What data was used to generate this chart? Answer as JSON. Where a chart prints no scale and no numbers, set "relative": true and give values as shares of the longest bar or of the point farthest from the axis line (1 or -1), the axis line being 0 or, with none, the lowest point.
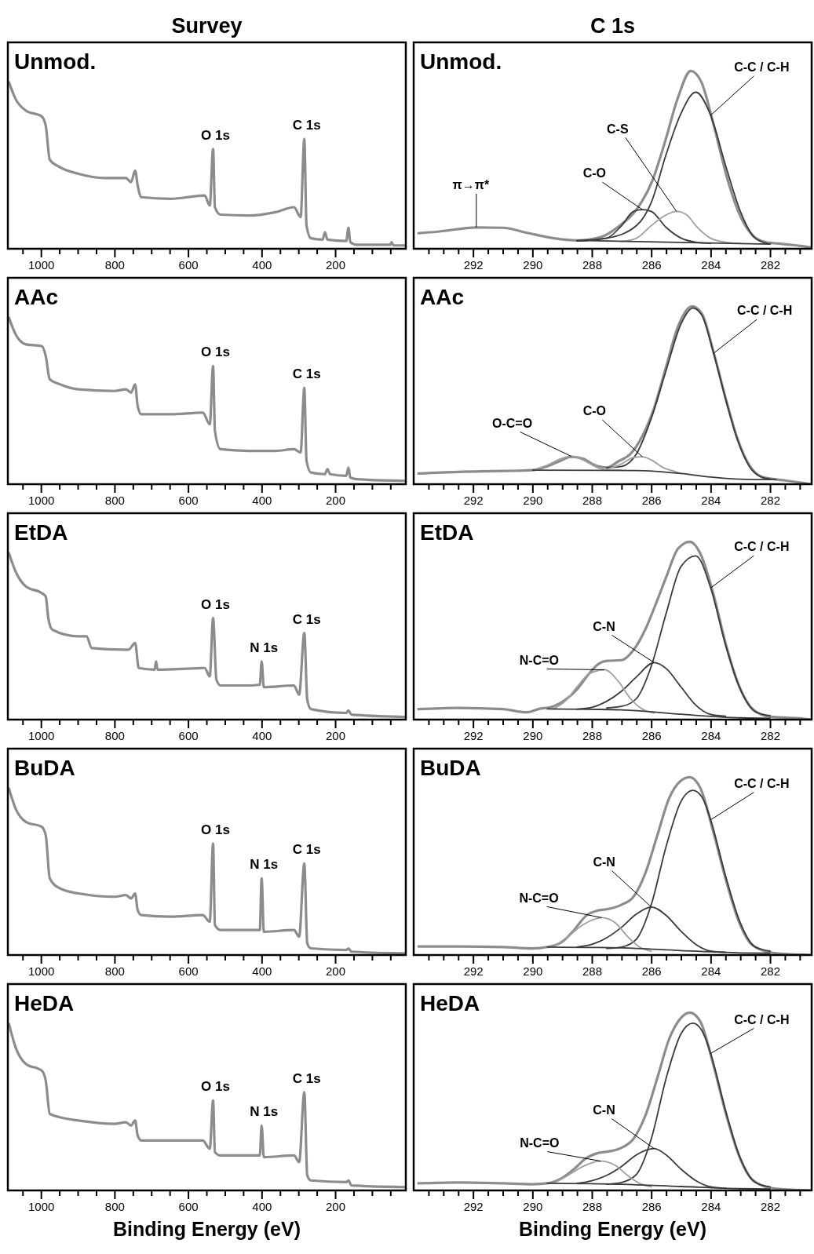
{
  "chart_data": [
    {
      "type": "line",
      "title": "Survey",
      "subtitle": "Unmod.",
      "relative": true,
      "xlim": [
        1090,
        8
      ],
      "xticks": [
        {
          "value": 1050,
          "label": null
        },
        1000,
        {
          "value": 950,
          "label": null
        },
        {
          "value": 900,
          "label": null
        },
        {
          "value": 850,
          "label": null
        },
        800,
        {
          "value": 750,
          "label": null
        },
        {
          "value": 700,
          "label": null
        },
        {
          "value": 650,
          "label": null
        },
        600,
        {
          "value": 550,
          "label": null
        },
        {
          "value": 500,
          "label": null
        },
        {
          "value": 450,
          "label": null
        },
        400,
        {
          "value": 350,
          "label": null
        },
        {
          "value": 300,
          "label": null
        },
        {
          "value": 250,
          "label": null
        },
        200,
        {
          "value": 150,
          "label": null
        },
        {
          "value": 100,
          "label": null
        },
        {
          "value": 50,
          "label": null
        }
      ],
      "annotations": [
        {
          "text": "O 1s",
          "x": 532,
          "y": 0.6
        },
        {
          "text": "C 1s",
          "x": 284,
          "y": 0.66
        }
      ],
      "series": [
        {
          "color": "#8c8c8c",
          "x": [
            1087,
            1069,
            1041,
            998,
            987,
            976,
            948,
            898,
            826,
            769,
            755,
            744,
            737,
            727,
            648,
            555,
            541,
            532,
            527,
            512,
            434,
            362,
            312,
            294,
            284,
            278,
            266,
            234,
            228,
            221,
            170,
            164,
            159,
            141,
            50,
            47,
            41,
            9
          ],
          "values": [
            1.0,
            0.9,
            0.83,
            0.795,
            0.74,
            0.535,
            0.49,
            0.45,
            0.425,
            0.425,
            0.4,
            0.47,
            0.38,
            0.31,
            0.3,
            0.32,
            0.26,
            0.6,
            0.25,
            0.205,
            0.2,
            0.22,
            0.25,
            0.19,
            0.66,
            0.14,
            0.063,
            0.055,
            0.1,
            0.055,
            0.047,
            0.126,
            0.04,
            0.024,
            0.024,
            0.04,
            0.02,
            0.02
          ]
        }
      ]
    },
    {
      "type": "line",
      "title": "C 1s",
      "subtitle": "Unmod.",
      "relative": true,
      "xlim": [
        294,
        280.6
      ],
      "xticks": [
        {
          "value": 293.5,
          "label": null
        },
        {
          "value": 293,
          "label": null
        },
        {
          "value": 292.5,
          "label": null
        },
        292,
        {
          "value": 291.5,
          "label": null
        },
        {
          "value": 291,
          "label": null
        },
        {
          "value": 290.5,
          "label": null
        },
        290,
        {
          "value": 289.5,
          "label": null
        },
        {
          "value": 289,
          "label": null
        },
        {
          "value": 288.5,
          "label": null
        },
        288,
        {
          "value": 287.5,
          "label": null
        },
        {
          "value": 287,
          "label": null
        },
        {
          "value": 286.5,
          "label": null
        },
        286,
        {
          "value": 285.5,
          "label": null
        },
        {
          "value": 285,
          "label": null
        },
        {
          "value": 284.5,
          "label": null
        },
        284,
        {
          "value": 283.5,
          "label": null
        },
        {
          "value": 283,
          "label": null
        },
        {
          "value": 282.5,
          "label": null
        },
        282,
        {
          "value": 281.5,
          "label": null
        },
        {
          "value": 281,
          "label": null
        }
      ],
      "annotations": [
        {
          "text": "π→π*",
          "x": 291.89,
          "y": 0.12
        },
        {
          "text": "C-O",
          "x": 286.3,
          "y": 0.22
        },
        {
          "text": "C-S",
          "x": 285.15,
          "y": 0.21
        },
        {
          "text": "C-C / C-H",
          "x": 284,
          "y": 0.75
        }
      ],
      "series": [
        {
          "color": "#8c8c8c",
          "x": [
            293.84,
            293.19,
            291.89,
            291.0,
            290.15,
            289.28,
            288.5,
            287.7,
            287.1,
            286.5,
            285.97,
            285.54,
            285.1,
            284.67,
            284.32,
            283.89,
            283.45,
            283.02,
            282.58,
            282.15,
            281.71,
            281.28,
            280.63
          ],
          "values": [
            0.088,
            0.096,
            0.12,
            0.118,
            0.088,
            0.059,
            0.047,
            0.066,
            0.125,
            0.22,
            0.38,
            0.6,
            0.85,
            1.0,
            0.94,
            0.69,
            0.4,
            0.19,
            0.074,
            0.037,
            0.029,
            0.022,
            0.007
          ]
        },
        {
          "color": "#3a3a3a",
          "x": [
            288.5,
            287.5,
            286.5,
            286,
            285.5,
            285,
            284.5,
            284,
            283.5,
            283,
            282.5,
            282
          ],
          "values": [
            0.044,
            0.059,
            0.13,
            0.26,
            0.53,
            0.76,
            0.88,
            0.75,
            0.47,
            0.21,
            0.059,
            0.026
          ]
        },
        {
          "color": "#3a3a3a",
          "x": [
            288.5,
            287.5,
            287,
            286.6,
            286.3,
            286,
            285.5,
            285,
            284.5,
            284
          ],
          "values": [
            0.044,
            0.06,
            0.13,
            0.21,
            0.22,
            0.21,
            0.12,
            0.06,
            0.037,
            0.03
          ]
        },
        {
          "color": "#a0a0a0",
          "x": [
            287,
            286.5,
            286,
            285.5,
            285.15,
            284.8,
            284.5,
            284,
            283.5,
            283
          ],
          "values": [
            0.04,
            0.059,
            0.13,
            0.19,
            0.21,
            0.19,
            0.13,
            0.059,
            0.037,
            0.03
          ]
        },
        {
          "color": "#3a3a3a",
          "x": [
            288.5,
            282
          ],
          "values": [
            0.047,
            0.026
          ]
        }
      ]
    },
    {
      "type": "line",
      "subtitle": "AAc",
      "relative": true,
      "xlim": [
        1090,
        8
      ],
      "xticks": [
        {
          "value": 1050,
          "label": null
        },
        1000,
        {
          "value": 950,
          "label": null
        },
        {
          "value": 900,
          "label": null
        },
        {
          "value": 850,
          "label": null
        },
        800,
        {
          "value": 750,
          "label": null
        },
        {
          "value": 700,
          "label": null
        },
        {
          "value": 650,
          "label": null
        },
        600,
        {
          "value": 550,
          "label": null
        },
        {
          "value": 500,
          "label": null
        },
        {
          "value": 450,
          "label": null
        },
        400,
        {
          "value": 350,
          "label": null
        },
        {
          "value": 300,
          "label": null
        },
        {
          "value": 250,
          "label": null
        },
        200,
        {
          "value": 150,
          "label": null
        },
        {
          "value": 100,
          "label": null
        },
        {
          "value": 50,
          "label": null
        }
      ],
      "annotations": [
        {
          "text": "O 1s",
          "x": 532,
          "y": 0.71
        },
        {
          "text": "C 1s",
          "x": 284,
          "y": 0.58
        }
      ],
      "series": [
        {
          "color": "#8c8c8c",
          "x": [
            1087,
            1069,
            1041,
            998,
            987,
            976,
            948,
            898,
            800,
            769,
            755,
            744,
            737,
            727,
            648,
            560,
            541,
            532,
            527,
            512,
            434,
            362,
            312,
            294,
            284,
            278,
            266,
            228,
            221,
            214,
            170,
            164,
            159,
            141,
            9
          ],
          "values": [
            1.0,
            0.9,
            0.84,
            0.83,
            0.77,
            0.63,
            0.6,
            0.57,
            0.56,
            0.57,
            0.55,
            0.6,
            0.47,
            0.42,
            0.42,
            0.43,
            0.36,
            0.71,
            0.32,
            0.21,
            0.2,
            0.2,
            0.21,
            0.19,
            0.58,
            0.14,
            0.07,
            0.06,
            0.09,
            0.06,
            0.05,
            0.1,
            0.04,
            0.03,
            0.02
          ]
        }
      ]
    },
    {
      "type": "line",
      "subtitle": "AAc",
      "relative": true,
      "xlim": [
        294,
        280.6
      ],
      "xticks": [
        {
          "value": 293.5,
          "label": null
        },
        {
          "value": 293,
          "label": null
        },
        {
          "value": 292.5,
          "label": null
        },
        292,
        {
          "value": 291.5,
          "label": null
        },
        {
          "value": 291,
          "label": null
        },
        {
          "value": 290.5,
          "label": null
        },
        290,
        {
          "value": 289.5,
          "label": null
        },
        {
          "value": 289,
          "label": null
        },
        {
          "value": 288.5,
          "label": null
        },
        288,
        {
          "value": 287.5,
          "label": null
        },
        {
          "value": 287,
          "label": null
        },
        {
          "value": 286.5,
          "label": null
        },
        286,
        {
          "value": 285.5,
          "label": null
        },
        {
          "value": 285,
          "label": null
        },
        {
          "value": 284.5,
          "label": null
        },
        284,
        {
          "value": 283.5,
          "label": null
        },
        {
          "value": 283,
          "label": null
        },
        {
          "value": 282.5,
          "label": null
        },
        282,
        {
          "value": 281.5,
          "label": null
        },
        {
          "value": 281,
          "label": null
        }
      ],
      "annotations": [
        {
          "text": "O-C=O",
          "x": 288.7,
          "y": 0.157
        },
        {
          "text": "C-O",
          "x": 286.3,
          "y": 0.154
        },
        {
          "text": "C-C / C-H",
          "x": 283.9,
          "y": 0.736
        }
      ],
      "series": [
        {
          "color": "#8c8c8c",
          "x": [
            293.84,
            292.5,
            291,
            290,
            289.5,
            289,
            288.7,
            288.3,
            287.9,
            287.5,
            287.1,
            286.7,
            286.3,
            285.9,
            285.5,
            285.1,
            284.63,
            284.3,
            283.9,
            283.5,
            283.1,
            282.7,
            282.3,
            281.9,
            281.5,
            280.63
          ],
          "values": [
            0.06,
            0.069,
            0.074,
            0.079,
            0.1,
            0.136,
            0.154,
            0.143,
            0.107,
            0.093,
            0.129,
            0.17,
            0.27,
            0.43,
            0.66,
            0.886,
            1.0,
            0.96,
            0.74,
            0.486,
            0.257,
            0.107,
            0.043,
            0.029,
            0.021,
            0.0
          ]
        },
        {
          "color": "#3a3a3a",
          "x": [
            287.5,
            287,
            286.5,
            286,
            285.5,
            285,
            284.6,
            284.3,
            283.9,
            283.5,
            283.1,
            282.7,
            282.3,
            282
          ],
          "values": [
            0.093,
            0.1,
            0.17,
            0.37,
            0.64,
            0.9,
            0.99,
            0.95,
            0.736,
            0.48,
            0.25,
            0.1,
            0.04,
            0.029
          ]
        },
        {
          "color": "#a0a0a0",
          "x": [
            290,
            289.5,
            289,
            288.7,
            288.3,
            287.9,
            287.5,
            287
          ],
          "values": [
            0.079,
            0.107,
            0.146,
            0.157,
            0.136,
            0.1,
            0.079,
            0.079
          ]
        },
        {
          "color": "#a0a0a0",
          "x": [
            287.5,
            287,
            286.6,
            286.3,
            286,
            285.6,
            285.2,
            285
          ],
          "values": [
            0.083,
            0.114,
            0.15,
            0.154,
            0.136,
            0.093,
            0.071,
            0.06
          ]
        },
        {
          "color": "#3a3a3a",
          "x": [
            290,
            286.5,
            285,
            284,
            282.5,
            281.8
          ],
          "values": [
            0.079,
            0.077,
            0.06,
            0.04,
            0.026,
            0.026
          ]
        }
      ]
    },
    {
      "type": "line",
      "subtitle": "EtDA",
      "relative": true,
      "xlim": [
        1090,
        8
      ],
      "xticks": [
        {
          "value": 1050,
          "label": null
        },
        1000,
        {
          "value": 950,
          "label": null
        },
        {
          "value": 900,
          "label": null
        },
        {
          "value": 850,
          "label": null
        },
        800,
        {
          "value": 750,
          "label": null
        },
        {
          "value": 700,
          "label": null
        },
        {
          "value": 650,
          "label": null
        },
        600,
        {
          "value": 550,
          "label": null
        },
        {
          "value": 500,
          "label": null
        },
        {
          "value": 450,
          "label": null
        },
        400,
        {
          "value": 350,
          "label": null
        },
        {
          "value": 300,
          "label": null
        },
        {
          "value": 250,
          "label": null
        },
        200,
        {
          "value": 150,
          "label": null
        },
        {
          "value": 100,
          "label": null
        },
        {
          "value": 50,
          "label": null
        }
      ],
      "annotations": [
        {
          "text": "O 1s",
          "x": 532,
          "y": 0.61
        },
        {
          "text": "N 1s",
          "x": 400,
          "y": 0.35
        },
        {
          "text": "C 1s",
          "x": 284,
          "y": 0.52
        }
      ],
      "series": [
        {
          "color": "#8c8c8c",
          "x": [
            1087,
            1069,
            1041,
            998,
            987,
            980,
            969,
            898,
            876,
            862,
            776,
            762,
            744,
            734,
            691,
            687,
            683,
            555,
            541,
            532,
            523,
            512,
            434,
            405,
            400,
            394,
            312,
            298,
            284,
            276,
            266,
            170,
            164,
            156,
            9
          ],
          "values": [
            1.0,
            0.89,
            0.8,
            0.76,
            0.74,
            0.61,
            0.54,
            0.5,
            0.5,
            0.43,
            0.42,
            0.42,
            0.46,
            0.31,
            0.3,
            0.35,
            0.3,
            0.31,
            0.26,
            0.61,
            0.24,
            0.205,
            0.205,
            0.21,
            0.35,
            0.195,
            0.205,
            0.15,
            0.52,
            0.12,
            0.063,
            0.04,
            0.055,
            0.03,
            0.016
          ]
        }
      ]
    },
    {
      "type": "line",
      "subtitle": "EtDA",
      "relative": true,
      "xlim": [
        294,
        280.6
      ],
      "xticks": [
        {
          "value": 293.5,
          "label": null
        },
        {
          "value": 293,
          "label": null
        },
        {
          "value": 292.5,
          "label": null
        },
        292,
        {
          "value": 291.5,
          "label": null
        },
        {
          "value": 291,
          "label": null
        },
        {
          "value": 290.5,
          "label": null
        },
        290,
        {
          "value": 289.5,
          "label": null
        },
        {
          "value": 289,
          "label": null
        },
        {
          "value": 288.5,
          "label": null
        },
        288,
        {
          "value": 287.5,
          "label": null
        },
        {
          "value": 287,
          "label": null
        },
        {
          "value": 286.5,
          "label": null
        },
        286,
        {
          "value": 285.5,
          "label": null
        },
        {
          "value": 285,
          "label": null
        },
        {
          "value": 284.5,
          "label": null
        },
        284,
        {
          "value": 283.5,
          "label": null
        },
        {
          "value": 283,
          "label": null
        },
        {
          "value": 282.5,
          "label": null
        },
        282,
        {
          "value": 281.5,
          "label": null
        },
        {
          "value": 281,
          "label": null
        }
      ],
      "annotations": [
        {
          "text": "N-C=O",
          "x": 287.58,
          "y": 0.28
        },
        {
          "text": "C-N",
          "x": 285.9,
          "y": 0.32
        },
        {
          "text": "C-C / C-H",
          "x": 284,
          "y": 0.74
        }
      ],
      "series": [
        {
          "color": "#8c8c8c",
          "x": [
            293.84,
            292.5,
            291,
            290.2,
            289.8,
            289.3,
            288.9,
            288.5,
            288.1,
            287.8,
            287.5,
            287.0,
            286.6,
            286.2,
            285.8,
            285.5,
            285.1,
            284.7,
            284.35,
            283.9,
            283.5,
            283.1,
            282.7,
            282.3,
            281.9,
            281.0,
            280.63
          ],
          "values": [
            0.059,
            0.066,
            0.059,
            0.041,
            0.059,
            0.074,
            0.11,
            0.17,
            0.257,
            0.31,
            0.33,
            0.334,
            0.39,
            0.507,
            0.67,
            0.8,
            0.96,
            1.0,
            0.934,
            0.7,
            0.43,
            0.213,
            0.081,
            0.029,
            0.015,
            0.007,
            0.0
          ]
        },
        {
          "color": "#3a3a3a",
          "x": [
            287.5,
            287,
            286.5,
            286,
            285.5,
            285,
            284.5,
            284,
            283.5,
            283,
            282.5,
            282
          ],
          "values": [
            0.066,
            0.074,
            0.118,
            0.3,
            0.596,
            0.86,
            0.92,
            0.74,
            0.42,
            0.17,
            0.044,
            0.022
          ]
        },
        {
          "color": "#3a3a3a",
          "x": [
            288.5,
            288,
            287.5,
            287,
            286.5,
            285.9,
            285.5,
            285,
            284.5,
            284,
            283.5
          ],
          "values": [
            0.059,
            0.069,
            0.103,
            0.16,
            0.24,
            0.32,
            0.287,
            0.184,
            0.081,
            0.029,
            0.019
          ]
        },
        {
          "color": "#a0a0a0",
          "x": [
            289.3,
            288.9,
            288.5,
            288.1,
            287.58,
            287.1,
            286.7,
            286.3,
            285.9
          ],
          "values": [
            0.059,
            0.103,
            0.184,
            0.257,
            0.28,
            0.213,
            0.118,
            0.059,
            0.037
          ]
        },
        {
          "color": "#3a3a3a",
          "x": [
            289.5,
            287,
            285,
            283,
            282
          ],
          "values": [
            0.06,
            0.055,
            0.03,
            0.01,
            0.007
          ]
        }
      ]
    },
    {
      "type": "line",
      "subtitle": "BuDA",
      "relative": true,
      "xlim": [
        1090,
        8
      ],
      "xticks": [
        {
          "value": 1050,
          "label": null
        },
        1000,
        {
          "value": 950,
          "label": null
        },
        {
          "value": 900,
          "label": null
        },
        {
          "value": 850,
          "label": null
        },
        800,
        {
          "value": 750,
          "label": null
        },
        {
          "value": 700,
          "label": null
        },
        {
          "value": 650,
          "label": null
        },
        600,
        {
          "value": 550,
          "label": null
        },
        {
          "value": 500,
          "label": null
        },
        {
          "value": 450,
          "label": null
        },
        400,
        {
          "value": 350,
          "label": null
        },
        {
          "value": 300,
          "label": null
        },
        {
          "value": 250,
          "label": null
        },
        200,
        {
          "value": 150,
          "label": null
        },
        {
          "value": 100,
          "label": null
        },
        {
          "value": 50,
          "label": null
        }
      ],
      "annotations": [
        {
          "text": "O 1s",
          "x": 532,
          "y": 0.67
        },
        {
          "text": "N 1s",
          "x": 400,
          "y": 0.46
        },
        {
          "text": "C 1s",
          "x": 284,
          "y": 0.55
        }
      ],
      "series": [
        {
          "color": "#8c8c8c",
          "x": [
            1087,
            1069,
            1041,
            998,
            987,
            976,
            948,
            898,
            800,
            769,
            755,
            744,
            737,
            727,
            648,
            560,
            541,
            532,
            527,
            512,
            434,
            405,
            400,
            394,
            312,
            298,
            284,
            276,
            266,
            170,
            164,
            156,
            9
          ],
          "values": [
            1.0,
            0.88,
            0.8,
            0.77,
            0.72,
            0.46,
            0.4,
            0.37,
            0.35,
            0.36,
            0.34,
            0.37,
            0.27,
            0.24,
            0.23,
            0.24,
            0.2,
            0.67,
            0.18,
            0.15,
            0.15,
            0.15,
            0.46,
            0.14,
            0.15,
            0.11,
            0.55,
            0.07,
            0.04,
            0.03,
            0.04,
            0.02,
            0.01
          ]
        }
      ]
    },
    {
      "type": "line",
      "subtitle": "BuDA",
      "relative": true,
      "xlim": [
        294,
        280.6
      ],
      "xticks": [
        {
          "value": 293.5,
          "label": null
        },
        {
          "value": 293,
          "label": null
        },
        {
          "value": 292.5,
          "label": null
        },
        292,
        {
          "value": 291.5,
          "label": null
        },
        {
          "value": 291,
          "label": null
        },
        {
          "value": 290.5,
          "label": null
        },
        290,
        {
          "value": 289.5,
          "label": null
        },
        {
          "value": 289,
          "label": null
        },
        {
          "value": 288.5,
          "label": null
        },
        288,
        {
          "value": 287.5,
          "label": null
        },
        {
          "value": 287,
          "label": null
        },
        {
          "value": 286.5,
          "label": null
        },
        286,
        {
          "value": 285.5,
          "label": null
        },
        {
          "value": 285,
          "label": null
        },
        {
          "value": 284.5,
          "label": null
        },
        284,
        {
          "value": 283.5,
          "label": null
        },
        {
          "value": 283,
          "label": null
        },
        {
          "value": 282.5,
          "label": null
        },
        282,
        {
          "value": 281.5,
          "label": null
        },
        {
          "value": 281,
          "label": null
        }
      ],
      "annotations": [
        {
          "text": "N-C=O",
          "x": 287.67,
          "y": 0.21
        },
        {
          "text": "C-N",
          "x": 286,
          "y": 0.27
        },
        {
          "text": "C-C / C-H",
          "x": 284,
          "y": 0.76
        }
      ],
      "series": [
        {
          "color": "#8c8c8c",
          "x": [
            293.84,
            292.5,
            291,
            290,
            289.5,
            289,
            288.6,
            288.2,
            287.8,
            287.4,
            287,
            286.6,
            286.2,
            285.8,
            285.4,
            285.0,
            284.71,
            284.35,
            283.9,
            283.5,
            283.1,
            282.7,
            282.3,
            281.9,
            280.63
          ],
          "values": [
            0.048,
            0.048,
            0.045,
            0.037,
            0.045,
            0.074,
            0.14,
            0.22,
            0.25,
            0.26,
            0.283,
            0.327,
            0.46,
            0.67,
            0.88,
            0.98,
            1.0,
            0.94,
            0.685,
            0.43,
            0.21,
            0.074,
            0.03,
            0.012,
            0.0
          ]
        },
        {
          "color": "#3a3a3a",
          "x": [
            287.5,
            287,
            286.5,
            286,
            285.5,
            285,
            284.6,
            284.3,
            284,
            283.5,
            283,
            282.5,
            282
          ],
          "values": [
            0.037,
            0.045,
            0.089,
            0.283,
            0.61,
            0.863,
            0.926,
            0.89,
            0.76,
            0.446,
            0.18,
            0.045,
            0.022
          ]
        },
        {
          "color": "#3a3a3a",
          "x": [
            288.5,
            288,
            287.5,
            287,
            286.5,
            286,
            285.5,
            285,
            284.5,
            284,
            283.5
          ],
          "values": [
            0.045,
            0.06,
            0.097,
            0.156,
            0.23,
            0.27,
            0.223,
            0.134,
            0.06,
            0.022,
            0.015
          ]
        },
        {
          "color": "#a0a0a0",
          "x": [
            289.3,
            288.8,
            288.3,
            287.67,
            287.2,
            286.8,
            286.4,
            286
          ],
          "values": [
            0.045,
            0.104,
            0.17,
            0.21,
            0.18,
            0.104,
            0.045,
            0.022
          ]
        },
        {
          "color": "#3a3a3a",
          "x": [
            289.5,
            287,
            285,
            283,
            282
          ],
          "values": [
            0.045,
            0.04,
            0.025,
            0.012,
            0.01
          ]
        }
      ]
    },
    {
      "type": "line",
      "subtitle": "HeDA",
      "relative": true,
      "xlim": [
        1090,
        8
      ],
      "xlabel": "Binding Energy (eV)",
      "xticks": [
        {
          "value": 1050,
          "label": null
        },
        1000,
        {
          "value": 950,
          "label": null
        },
        {
          "value": 900,
          "label": null
        },
        {
          "value": 850,
          "label": null
        },
        800,
        {
          "value": 750,
          "label": null
        },
        {
          "value": 700,
          "label": null
        },
        {
          "value": 650,
          "label": null
        },
        600,
        {
          "value": 550,
          "label": null
        },
        {
          "value": 500,
          "label": null
        },
        {
          "value": 450,
          "label": null
        },
        400,
        {
          "value": 350,
          "label": null
        },
        {
          "value": 300,
          "label": null
        },
        {
          "value": 250,
          "label": null
        },
        200,
        {
          "value": 150,
          "label": null
        },
        {
          "value": 100,
          "label": null
        },
        {
          "value": 50,
          "label": null
        }
      ],
      "annotations": [
        {
          "text": "O 1s",
          "x": 532,
          "y": 0.54
        },
        {
          "text": "N 1s",
          "x": 400,
          "y": 0.39
        },
        {
          "text": "C 1s",
          "x": 284,
          "y": 0.59
        }
      ],
      "series": [
        {
          "color": "#8c8c8c",
          "x": [
            1087,
            1069,
            1041,
            998,
            987,
            976,
            948,
            898,
            800,
            769,
            755,
            744,
            737,
            727,
            648,
            560,
            541,
            532,
            527,
            512,
            434,
            405,
            400,
            394,
            312,
            298,
            284,
            276,
            266,
            170,
            164,
            156,
            9
          ],
          "values": [
            1.0,
            0.86,
            0.76,
            0.72,
            0.66,
            0.46,
            0.44,
            0.42,
            0.4,
            0.41,
            0.39,
            0.42,
            0.33,
            0.3,
            0.3,
            0.3,
            0.25,
            0.54,
            0.23,
            0.21,
            0.21,
            0.21,
            0.39,
            0.2,
            0.21,
            0.17,
            0.59,
            0.09,
            0.06,
            0.05,
            0.06,
            0.03,
            0.02
          ]
        }
      ]
    },
    {
      "type": "line",
      "subtitle": "HeDA",
      "relative": true,
      "xlim": [
        294,
        280.6
      ],
      "xlabel": "Binding Energy (eV)",
      "xticks": [
        {
          "value": 293.5,
          "label": null
        },
        {
          "value": 293,
          "label": null
        },
        {
          "value": 292.5,
          "label": null
        },
        292,
        {
          "value": 291.5,
          "label": null
        },
        {
          "value": 291,
          "label": null
        },
        {
          "value": 290.5,
          "label": null
        },
        290,
        {
          "value": 289.5,
          "label": null
        },
        {
          "value": 289,
          "label": null
        },
        {
          "value": 288.5,
          "label": null
        },
        288,
        {
          "value": 287.5,
          "label": null
        },
        {
          "value": 287,
          "label": null
        },
        {
          "value": 286.5,
          "label": null
        },
        286,
        {
          "value": 285.5,
          "label": null
        },
        {
          "value": 285,
          "label": null
        },
        {
          "value": 284.5,
          "label": null
        },
        284,
        {
          "value": 283.5,
          "label": null
        },
        {
          "value": 283,
          "label": null
        },
        {
          "value": 282.5,
          "label": null
        },
        282,
        {
          "value": 281.5,
          "label": null
        },
        {
          "value": 281,
          "label": null
        }
      ],
      "annotations": [
        {
          "text": "N-C=O",
          "x": 287.7,
          "y": 0.165
        },
        {
          "text": "C-N",
          "x": 285.9,
          "y": 0.235
        },
        {
          "text": "C-C / C-H",
          "x": 284,
          "y": 0.77
        }
      ],
      "series": [
        {
          "color": "#8c8c8c",
          "x": [
            293.84,
            292.5,
            291,
            290,
            289.5,
            289,
            288.6,
            288.2,
            287.8,
            287.4,
            287,
            286.6,
            286.2,
            285.8,
            285.4,
            285.0,
            284.7,
            284.35,
            283.9,
            283.5,
            283.1,
            282.7,
            282.3,
            281.9,
            280.63
          ],
          "values": [
            0.04,
            0.045,
            0.04,
            0.035,
            0.04,
            0.07,
            0.12,
            0.18,
            0.21,
            0.22,
            0.24,
            0.29,
            0.42,
            0.63,
            0.85,
            0.97,
            1.0,
            0.95,
            0.7,
            0.44,
            0.22,
            0.08,
            0.03,
            0.012,
            0.0
          ]
        },
        {
          "color": "#3a3a3a",
          "x": [
            287.5,
            287,
            286.5,
            286,
            285.5,
            285,
            284.6,
            284.3,
            284,
            283.5,
            283,
            282.5,
            282
          ],
          "values": [
            0.035,
            0.045,
            0.09,
            0.29,
            0.63,
            0.88,
            0.94,
            0.9,
            0.77,
            0.45,
            0.18,
            0.045,
            0.02
          ]
        },
        {
          "color": "#3a3a3a",
          "x": [
            288.5,
            288,
            287.5,
            287,
            286.5,
            285.9,
            285.5,
            285,
            284.5,
            284,
            283.5
          ],
          "values": [
            0.04,
            0.055,
            0.085,
            0.135,
            0.2,
            0.235,
            0.2,
            0.12,
            0.055,
            0.02,
            0.012
          ]
        },
        {
          "color": "#a0a0a0",
          "x": [
            289.3,
            288.8,
            288.3,
            287.7,
            287.2,
            286.8,
            286.4,
            286
          ],
          "values": [
            0.04,
            0.085,
            0.135,
            0.165,
            0.14,
            0.085,
            0.04,
            0.02
          ]
        },
        {
          "color": "#3a3a3a",
          "x": [
            289.5,
            287,
            285,
            283,
            282
          ],
          "values": [
            0.04,
            0.035,
            0.022,
            0.01,
            0.008
          ]
        }
      ]
    }
  ]
}
